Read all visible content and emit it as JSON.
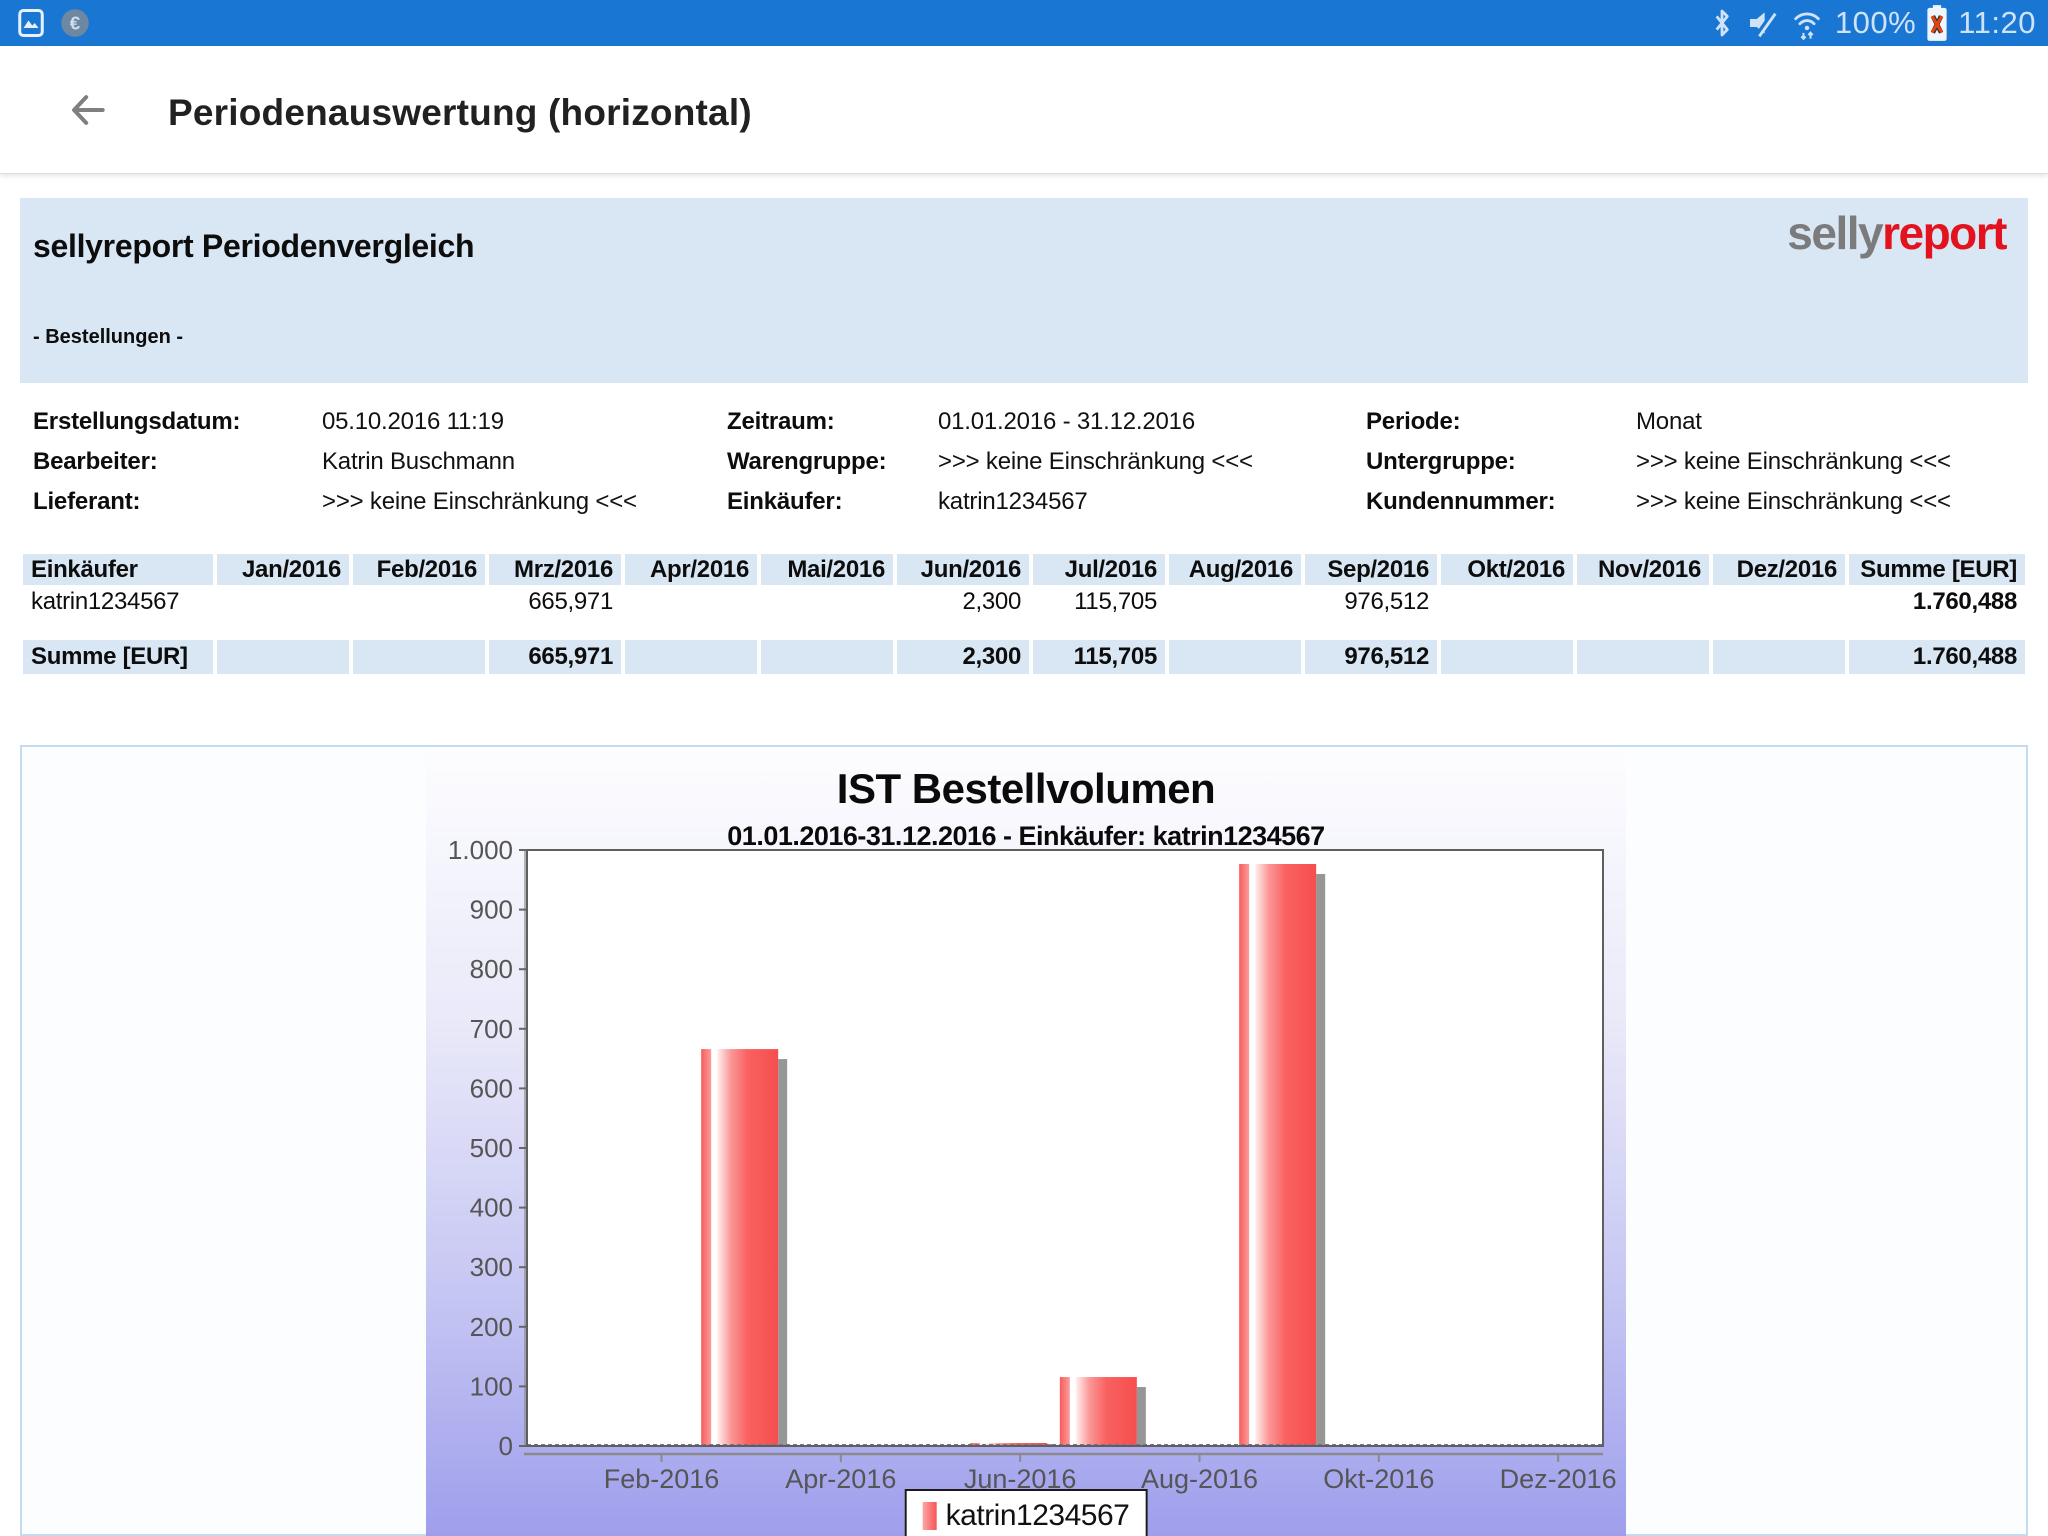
{
  "colors": {
    "status_bar": "#1976d2",
    "panel_blue": "#d9e6f4",
    "logo_gray": "#7b7b7b",
    "logo_red": "#e2131f",
    "bar_red": "#f75555",
    "chart_gradient_top": "#fdfdff",
    "chart_gradient_bottom": "#9e9eed"
  },
  "status_bar": {
    "battery_percent": "100%",
    "time": "11:20",
    "left_icons": [
      "screenshot-icon",
      "euro-icon"
    ],
    "right_icons": [
      "bluetooth-icon",
      "volume-muted-icon",
      "wifi-icon",
      "battery-icon"
    ]
  },
  "app_bar": {
    "title": "Periodenauswertung (horizontal)",
    "back_icon": "arrow-left"
  },
  "report_header": {
    "title": "sellyreport Periodenvergleich",
    "subtitle": "- Bestellungen -",
    "logo_part1": "selly",
    "logo_part2": "report"
  },
  "meta": {
    "rows": [
      [
        {
          "label": "Erstellungsdatum:",
          "value": "05.10.2016 11:19"
        },
        {
          "label": "Zeitraum:",
          "value": "01.01.2016 - 31.12.2016"
        },
        {
          "label": "Periode:",
          "value": "Monat"
        }
      ],
      [
        {
          "label": "Bearbeiter:",
          "value": "Katrin Buschmann"
        },
        {
          "label": "Warengruppe:",
          "value": ">>> keine Einschränkung <<<"
        },
        {
          "label": "Untergruppe:",
          "value": ">>> keine Einschränkung <<<"
        }
      ],
      [
        {
          "label": "Lieferant:",
          "value": ">>> keine Einschränkung <<<"
        },
        {
          "label": "Einkäufer:",
          "value": "katrin1234567"
        },
        {
          "label": "Kundennummer:",
          "value": ">>> keine Einschränkung <<<"
        }
      ]
    ]
  },
  "table": {
    "name_header": "Einkäufer",
    "month_headers": [
      "Jan/2016",
      "Feb/2016",
      "Mrz/2016",
      "Apr/2016",
      "Mai/2016",
      "Jun/2016",
      "Jul/2016",
      "Aug/2016",
      "Sep/2016",
      "Okt/2016",
      "Nov/2016",
      "Dez/2016"
    ],
    "sum_header": "Summe [EUR]",
    "data_row": {
      "name": "katrin1234567",
      "values": [
        "",
        "",
        "665,971",
        "",
        "",
        "2,300",
        "115,705",
        "",
        "976,512",
        "",
        "",
        ""
      ],
      "sum": "1.760,488"
    },
    "sum_row": {
      "name": "Summe [EUR]",
      "values": [
        "",
        "",
        "665,971",
        "",
        "",
        "2,300",
        "115,705",
        "",
        "976,512",
        "",
        "",
        ""
      ],
      "sum": "1.760,488"
    }
  },
  "chart_data": {
    "type": "bar",
    "title": "IST Bestellvolumen",
    "subtitle": "01.01.2016-31.12.2016 - Einkäufer: katrin1234567",
    "categories": [
      "Jan-2016",
      "Feb-2016",
      "Mrz-2016",
      "Apr-2016",
      "Mai-2016",
      "Jun-2016",
      "Jul-2016",
      "Aug-2016",
      "Sep-2016",
      "Okt-2016",
      "Nov-2016",
      "Dez-2016"
    ],
    "values": [
      null,
      null,
      665.971,
      null,
      null,
      2.3,
      115.705,
      null,
      976.512,
      null,
      null,
      null
    ],
    "ylim": [
      0,
      1000
    ],
    "y_ticks": [
      "0",
      "100",
      "200",
      "300",
      "400",
      "500",
      "600",
      "700",
      "800",
      "900",
      "1.000"
    ],
    "x_tick_labels": [
      "Feb-2016",
      "Apr-2016",
      "Jun-2016",
      "Aug-2016",
      "Okt-2016",
      "Dez-2016"
    ],
    "legend": [
      "katrin1234567"
    ],
    "legend_position": "bottom",
    "grid": false,
    "bar_color": "#f75555"
  }
}
